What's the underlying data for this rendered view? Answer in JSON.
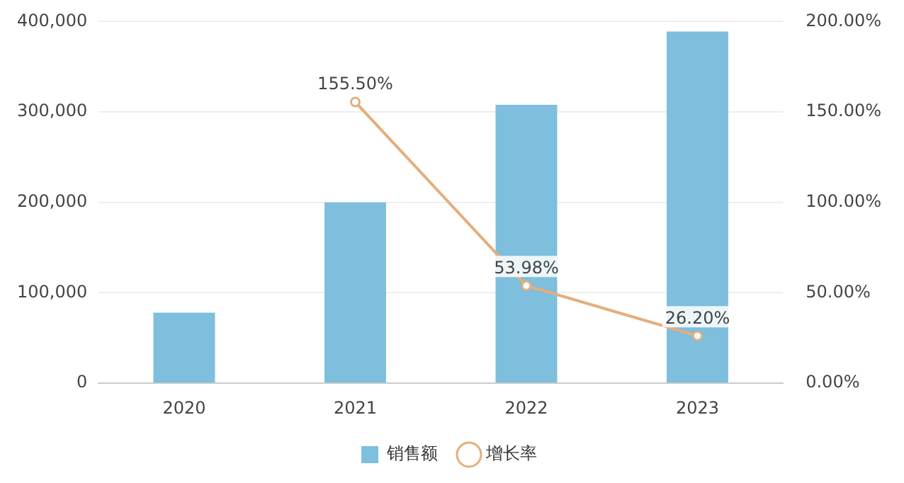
{
  "chart_data": {
    "type": "bar",
    "categories": [
      "2020",
      "2021",
      "2022",
      "2023"
    ],
    "series": [
      {
        "name": "销售额",
        "color": "#7dbfdc",
        "values": [
          78000,
          200000,
          308000,
          389000
        ]
      },
      {
        "name": "增长率",
        "type": "line",
        "axis": "y2",
        "color": "#e4ae7c",
        "values": [
          null,
          155.5,
          53.98,
          26.2
        ],
        "value_labels": [
          null,
          "155.50%",
          "53.98%",
          "26.20%"
        ]
      }
    ],
    "ylim": [
      0,
      400000
    ],
    "yticks": [
      {
        "value": 0,
        "label": "0"
      },
      {
        "value": 100000,
        "label": "100,000"
      },
      {
        "value": 200000,
        "label": "200,000"
      },
      {
        "value": 300000,
        "label": "300,000"
      },
      {
        "value": 400000,
        "label": "400,000"
      }
    ],
    "y2lim": [
      0,
      200
    ],
    "y2ticks": [
      {
        "value": 0,
        "label": "0.00%"
      },
      {
        "value": 50,
        "label": "50.00%"
      },
      {
        "value": 100,
        "label": "100.00%"
      },
      {
        "value": 150,
        "label": "150.00%"
      },
      {
        "value": 200,
        "label": "200.00%"
      }
    ],
    "grid": "y",
    "legend": "bottom",
    "marker": "circle",
    "line_style": "solid"
  }
}
